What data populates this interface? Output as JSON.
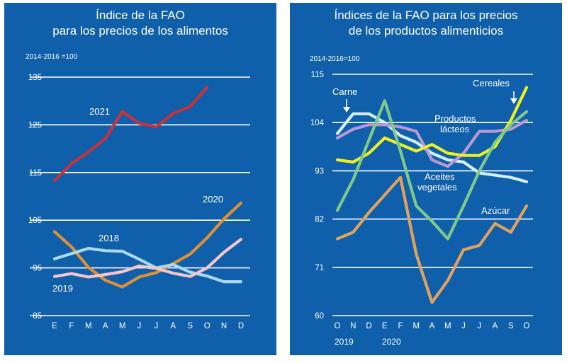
{
  "colors": {
    "panel_bg": "#0f5faa",
    "grid": "#ffffff",
    "text": "#ffffff"
  },
  "chart_data": [
    {
      "type": "line",
      "title_lines": [
        "Índice de la FAO",
        "para los precios de los alimentos"
      ],
      "base_note": "2014-2016 =100",
      "categories": [
        "E",
        "F",
        "M",
        "A",
        "M",
        "J",
        "J",
        "A",
        "S",
        "O",
        "N",
        "D"
      ],
      "yticks": [
        85,
        95,
        105,
        115,
        125,
        135
      ],
      "ylim": [
        85,
        135
      ],
      "grid": true,
      "series": [
        {
          "name": "2021",
          "color": "#c8333a",
          "values": [
            113.3,
            116.9,
            119.3,
            122.1,
            127.8,
            125.3,
            124.6,
            127.4,
            128.8,
            132.9,
            null,
            null
          ]
        },
        {
          "name": "2020",
          "color": "#e09133",
          "values": [
            102.6,
            99.4,
            95.1,
            92.4,
            91.0,
            93.1,
            94.0,
            95.9,
            97.9,
            101.3,
            105.3,
            108.6
          ]
        },
        {
          "name": "2018",
          "color": "#a9d9ec",
          "values": [
            96.9,
            98.0,
            99.1,
            98.6,
            98.5,
            96.8,
            95.0,
            95.7,
            94.1,
            93.3,
            92.1,
            92.1
          ]
        },
        {
          "name": "2019",
          "color": "#f4c6cc",
          "values": [
            93.2,
            93.8,
            93.1,
            93.6,
            94.2,
            95.4,
            94.9,
            93.9,
            93.2,
            95.0,
            98.3,
            101.0
          ]
        }
      ],
      "annotations": [
        "2021",
        "2020",
        "2018",
        "2019"
      ]
    },
    {
      "type": "line",
      "title_lines": [
        "Índices de la FAO para los precios",
        "de los productos alimenticios"
      ],
      "base_note": "2014-2016=100",
      "categories": [
        "O",
        "N",
        "D",
        "E",
        "F",
        "M",
        "A",
        "M",
        "J",
        "J",
        "A",
        "S",
        "O"
      ],
      "year_labels": [
        "2019",
        "2020"
      ],
      "yticks": [
        60,
        71,
        82,
        93,
        104,
        115
      ],
      "ylim": [
        60,
        115
      ],
      "grid": true,
      "series": [
        {
          "name": "Carne",
          "color": "#d5eef8",
          "values": [
            101.5,
            106.0,
            106.0,
            104.0,
            101.0,
            99.5,
            97.0,
            95.5,
            95.0,
            92.5,
            92.0,
            91.5,
            90.5
          ]
        },
        {
          "name": "Productos lácteos",
          "color": "#b79ad1",
          "values": [
            100.5,
            102.5,
            103.5,
            103.5,
            103.0,
            102.0,
            95.5,
            94.0,
            97.0,
            102.0,
            102.0,
            102.5,
            104.5
          ]
        },
        {
          "name": "Cereales",
          "color": "#eef022",
          "values": [
            95.5,
            95.0,
            97.0,
            100.5,
            99.0,
            97.5,
            99.0,
            97.0,
            96.5,
            96.5,
            98.5,
            104.5,
            112.0
          ]
        },
        {
          "name": "Aceites vegetales",
          "color": "#7fc98a",
          "values": [
            84.0,
            91.0,
            100.0,
            109.0,
            97.5,
            85.0,
            81.5,
            77.5,
            85.0,
            93.0,
            99.5,
            103.5,
            106.5
          ]
        },
        {
          "name": "Azúcar",
          "color": "#e2a25b",
          "values": [
            77.5,
            79.0,
            83.5,
            87.5,
            91.5,
            74.0,
            63.0,
            68.0,
            75.0,
            76.0,
            81.0,
            79.0,
            85.0
          ]
        }
      ],
      "annotations": [
        "Carne",
        "Productos",
        "lácteos",
        "Cereales",
        "Aceites",
        "vegetales",
        "Azúcar"
      ]
    }
  ]
}
